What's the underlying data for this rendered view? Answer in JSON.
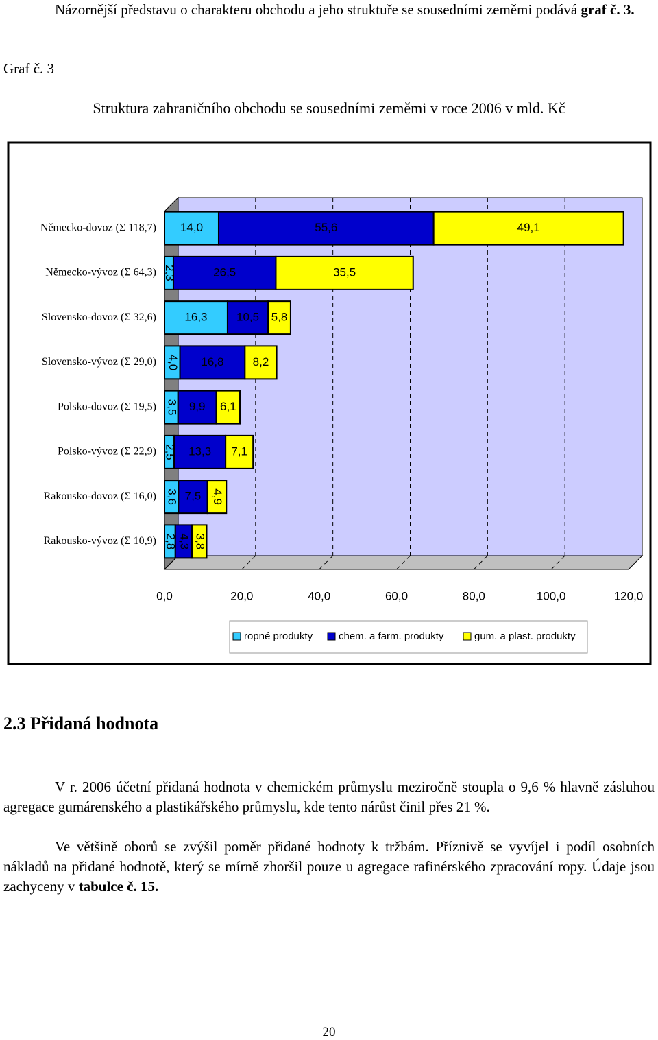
{
  "intro": [
    "Názornější představu o charakteru obchodu a jeho struktuře se sousedními zeměmi podává ",
    "graf č. 3."
  ],
  "figure_label": "Graf č. 3",
  "chart_data": {
    "type": "stacked-bar-horizontal",
    "title": "Struktura zahraničního obchodu se sousedními zeměmi v roce 2006 v mld. Kč",
    "categories": [
      "Německo-dovoz (Σ 118,7)",
      "Německo-vývoz (Σ 64,3)",
      "Slovensko-dovoz (Σ 32,6)",
      "Slovensko-vývoz (Σ 29,0)",
      "Polsko-dovoz (Σ 19,5)",
      "Polsko-vývoz (Σ 22,9)",
      "Rakousko-dovoz (Σ 16,0)",
      "Rakousko-vývoz (Σ 10,9)"
    ],
    "series": [
      {
        "name": "ropné produkty",
        "color": "#33ccff",
        "values": [
          14.0,
          2.3,
          16.3,
          4.0,
          3.5,
          2.5,
          3.6,
          2.8
        ],
        "value_labels": [
          "14,0",
          "2,3",
          "16,3",
          "4,0",
          "3,5",
          "2,5",
          "3,6",
          "2,8"
        ]
      },
      {
        "name": "chem. a farm. produkty",
        "color": "#0000cc",
        "values": [
          55.6,
          26.5,
          10.5,
          16.8,
          9.9,
          13.3,
          7.5,
          4.3
        ],
        "value_labels": [
          "55,6",
          "26,5",
          "10,5",
          "16,8",
          "9,9",
          "13,3",
          "7,5",
          "4,3"
        ]
      },
      {
        "name": "gum. a plast. produkty",
        "color": "#ffff00",
        "values": [
          49.1,
          35.5,
          5.8,
          8.2,
          6.1,
          7.1,
          4.9,
          3.8
        ],
        "value_labels": [
          "49,1",
          "35,5",
          "5,8",
          "8,2",
          "6,1",
          "7,1",
          "4,9",
          "3,8"
        ]
      }
    ],
    "xlim": [
      0,
      120
    ],
    "xticks": [
      {
        "value": 0,
        "label": "0,0"
      },
      {
        "value": 20,
        "label": "20,0"
      },
      {
        "value": 40,
        "label": "40,0"
      },
      {
        "value": 60,
        "label": "60,0"
      },
      {
        "value": 80,
        "label": "80,0"
      },
      {
        "value": 100,
        "label": "100,0"
      },
      {
        "value": 120,
        "label": "120,0"
      }
    ],
    "grid": true,
    "legend": "bottom",
    "background": "#ccccff"
  },
  "heading": "2.3 Přidaná hodnota",
  "paragraph1": "V r. 2006 účetní přidaná hodnota v chemickém průmyslu meziročně stoupla o 9,6 % hlavně zásluhou agregace gumárenského a plastikářského průmyslu, kde tento nárůst činil přes 21 %.",
  "paragraph2": [
    "Ve většině oborů se zvýšil poměr přidané hodnoty k tržbám. Příznivě se vyvíjel i podíl osobních nákladů na přidané hodnotě, který se mírně zhoršil pouze u agregace rafinérského zpracování ropy. Údaje jsou zachyceny v ",
    "tabulce č. 15."
  ],
  "page_number": "20"
}
